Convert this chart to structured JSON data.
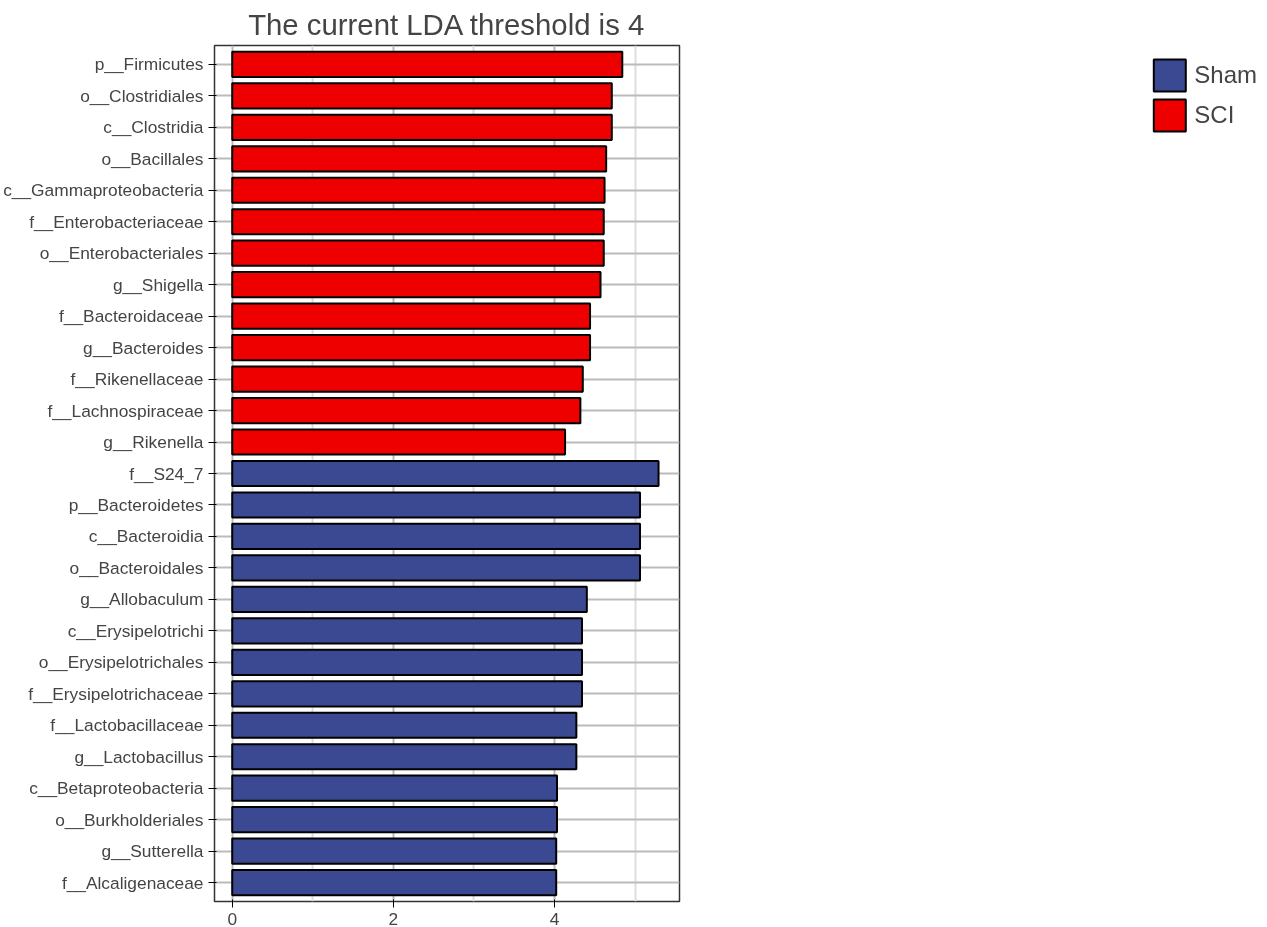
{
  "chart_data": {
    "type": "bar",
    "orientation": "horizontal",
    "title": "The current LDA threshold is 4",
    "categories": [
      "p__Firmicutes",
      "o__Clostridiales",
      "c__Clostridia",
      "o__Bacillales",
      "c__Gammaproteobacteria",
      "f__Enterobacteriaceae",
      "o__Enterobacteriales",
      "g__Shigella",
      "f__Bacteroidaceae",
      "g__Bacteroides",
      "f__Rikenellaceae",
      "f__Lachnospiraceae",
      "g__Rikenella",
      "f__S24_7",
      "p__Bacteroidetes",
      "c__Bacteroidia",
      "o__Bacteroidales",
      "g__Allobaculum",
      "c__Erysipelotrichi",
      "o__Erysipelotrichales",
      "f__Erysipelotrichaceae",
      "f__Lactobacillaceae",
      "g__Lactobacillus",
      "c__Betaproteobacteria",
      "o__Burkholderiales",
      "g__Sutterella",
      "f__Alcaligenaceae"
    ],
    "series": [
      {
        "name": "Sham",
        "color": "#3b4992",
        "values": [
          null,
          null,
          null,
          null,
          null,
          null,
          null,
          null,
          null,
          null,
          null,
          null,
          null,
          5.29,
          5.06,
          5.06,
          5.06,
          4.4,
          4.34,
          4.34,
          4.34,
          4.27,
          4.27,
          4.03,
          4.03,
          4.02,
          4.02
        ]
      },
      {
        "name": "SCI",
        "color": "#ee0000",
        "values": [
          4.84,
          4.71,
          4.71,
          4.64,
          4.62,
          4.61,
          4.61,
          4.57,
          4.44,
          4.44,
          4.35,
          4.32,
          4.13,
          null,
          null,
          null,
          null,
          null,
          null,
          null,
          null,
          null,
          null,
          null,
          null,
          null,
          null
        ]
      }
    ],
    "xlim": [
      -0.22,
      5.55
    ],
    "xticks": [
      0,
      2,
      4
    ],
    "grid": true,
    "legend": "right"
  }
}
